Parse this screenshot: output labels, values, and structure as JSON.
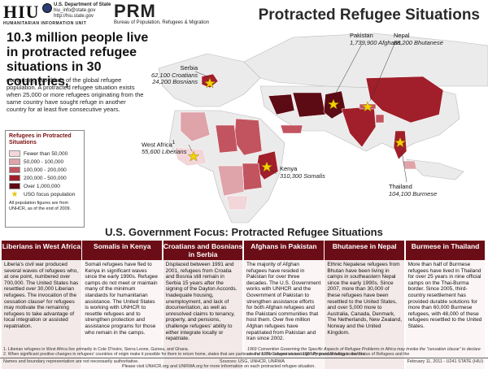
{
  "header": {
    "hiu_logo": "HIU",
    "hiu_sub": "HUMANITARIAN INFORMATION UNIT",
    "dept_line1": "U.S. Department of State",
    "dept_line2": "hiu_info@state.gov",
    "dept_line3": "http://hiu.state.gov",
    "prm_logo": "PRM",
    "prm_sub": "Bureau of Population, Refugees & Migration",
    "title": "Protracted Refugee Situations"
  },
  "intro": {
    "headline": "10.3 million people live in protracted refugee situations in 30 countries,",
    "description": "comprising two-thirds of the global refugee population.  A protracted refugee situation exists when 25,000 or more refugees originating from the same country have sought refuge in another country for at least five consecutive years."
  },
  "map_labels": {
    "pakistan": {
      "name": "Pakistan",
      "value": "1,739,900 Afghans"
    },
    "nepal": {
      "name": "Nepal",
      "value": "88,200 Bhutanese"
    },
    "serbia": {
      "name": "Serbia",
      "value1": "62,100 Croatians",
      "value2": "24,200 Bosnians"
    },
    "west_africa": {
      "name": "West Africa",
      "sup": "1",
      "value": "55,600 Liberians"
    },
    "kenya": {
      "name": "Kenya",
      "value": "310,300 Somalis"
    },
    "thailand": {
      "name": "Thailand",
      "value": "104,100 Burmese"
    }
  },
  "legend": {
    "title": "Refugees in Protracted Situations",
    "items": [
      {
        "label": "Fewer than 50,000",
        "color": "#f2d6d9"
      },
      {
        "label": "50,000 - 100,000",
        "color": "#dfa3aa"
      },
      {
        "label": "100,000 - 200,000",
        "color": "#c2545f"
      },
      {
        "label": "200,000 - 500,000",
        "color": "#a01f2a"
      },
      {
        "label": "Over 1,000,000",
        "color": "#5c0a14"
      }
    ],
    "usg_label": "USG focus population",
    "note": "All population figures are from UNHCR, as of the end of 2009."
  },
  "focus": {
    "title": "U.S. Government Focus:  Protracted Refugee Situations",
    "columns": [
      {
        "heading": "Liberians in West Africa",
        "body": "Liberia's civil war produced several waves of refugees who, at one point, numbered over 700,000. The United States has resettled over 30,000 Liberian refugees.  The invocation of the cessation clause² for refugees may motivate the remaining refugees to take advantage of local integration or assisted repatriation."
      },
      {
        "heading": "Somalis in Kenya",
        "body": "Somali refugees have fled to Kenya in significant waves since the early 1990s. Refugee camps do not meet or maintain many of the minimum standards for humanitarian assistance. The United States is working with UNHCR to resettle refugees and to strengthen protection and assistance programs for those who remain in the camps."
      },
      {
        "heading": "Croatians and Bosnians in Serbia",
        "body": "Displaced between 1991 and 2001, refugees from Croatia and Bosnia still remain in Serbia 15 years after the signing of the Dayton Accords.  Inadequate housing, unemployment, and lack of documentation, as well as unresolved claims to tenancy, property, and pensions, challenge refugees' ability to either integrate locally or repatriate."
      },
      {
        "heading": "Afghans in Pakistan",
        "body": "The majority of Afghan refugees have resided in Pakistan for over three decades.  The U.S. Government works with UNHCR and the Government of Pakistan to strengthen assistance efforts for both Afghan refugees and the Pakistani communities that host them.  Over five million Afghan refugees have repatriated from Pakistan and Iran since 2002."
      },
      {
        "heading": "Bhutanese in Nepal",
        "body": "Ethnic Nepalese refugees from Bhutan have been living in camps in southeastern Nepal since the early 1990s.  Since 2007, more than 30,000 of these refugees have been resettled to the United States, and over 5,000 more to Australia, Canada, Denmark, The Netherlands, New Zealand, Norway and the United Kingdom."
      },
      {
        "heading": "Burmese in Thailand",
        "body": "More than half of Burmese refugees have lived in Thailand for over 25 years in nine official camps on the Thai-Burma border. Since 2005, third-country resettlement has provided durable solutions for more than 60,000 Burmese refugees, with 48,000 of these refugees resettled to the United States."
      }
    ]
  },
  "footnotes": {
    "fn1": "1.  Liberian refugees in West Africa live primarily in Cote D'Ivoire, Sierra Leone, Guinea, and Ghana.",
    "fn2": "2.  When significant positive changes in refugees' countries of origin make it possible for them to return home, states that are parties to the 1951 Convention and 1967 Protocol Relating to the Status of Refugees and the",
    "fn2_cont": "1969 Convention Governing the Specific Aspects of Refugee Problems in Africa may invoke the \"cessation clause\" to declare an end to the refugee status originally granted refugee seekers."
  },
  "bottom": {
    "left": "Names and boundary representation are not necessarily authoritative.",
    "center": "Sources: USG, UNHCR, UNRWA",
    "right": "February 11, 2011 - U241 STATE (HIU)",
    "mid": "Please visit UNHCR.org and UNRWA.org for more information on each protracted refugee situation."
  }
}
